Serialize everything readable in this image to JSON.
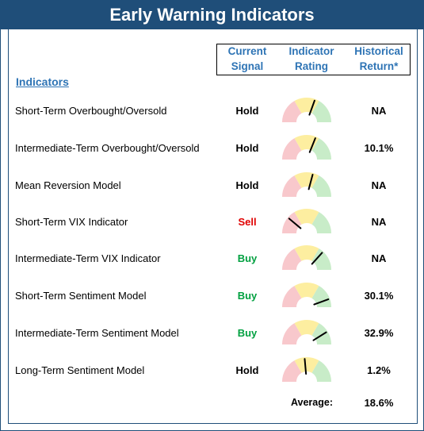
{
  "title": "Early Warning Indicators",
  "columns": {
    "signal": [
      "Current",
      "Signal"
    ],
    "rating": [
      "Indicator",
      "Rating"
    ],
    "return": [
      "Historical",
      "Return*"
    ]
  },
  "section_label": "Indicators",
  "colors": {
    "title_bg": "#1f4e79",
    "header_text": "#2e74b5",
    "hold": "#000000",
    "sell": "#e00000",
    "buy": "#00a040",
    "gauge_red": "#f8c8cc",
    "gauge_yellow": "#fdeea0",
    "gauge_green": "#c8ecc8"
  },
  "rows": [
    {
      "name": "Short-Term Overbought/Oversold",
      "signal": "Hold",
      "needle_deg": 110,
      "return": "NA"
    },
    {
      "name": "Intermediate-Term Overbought/Oversold",
      "signal": "Hold",
      "needle_deg": 112,
      "return": "10.1%"
    },
    {
      "name": "Mean Reversion Model",
      "signal": "Hold",
      "needle_deg": 105,
      "return": "NA"
    },
    {
      "name": "Short-Term VIX Indicator",
      "signal": "Sell",
      "needle_deg": 40,
      "return": "NA"
    },
    {
      "name": "Intermediate-Term VIX Indicator",
      "signal": "Buy",
      "needle_deg": 132,
      "return": "NA"
    },
    {
      "name": "Short-Term Sentiment Model",
      "signal": "Buy",
      "needle_deg": 160,
      "return": "30.1%"
    },
    {
      "name": "Intermediate-Term Sentiment Model",
      "signal": "Buy",
      "needle_deg": 148,
      "return": "32.9%"
    },
    {
      "name": "Long-Term Sentiment Model",
      "signal": "Hold",
      "needle_deg": 85,
      "return": "1.2%"
    }
  ],
  "average": {
    "label": "Average:",
    "value": "18.6%"
  }
}
